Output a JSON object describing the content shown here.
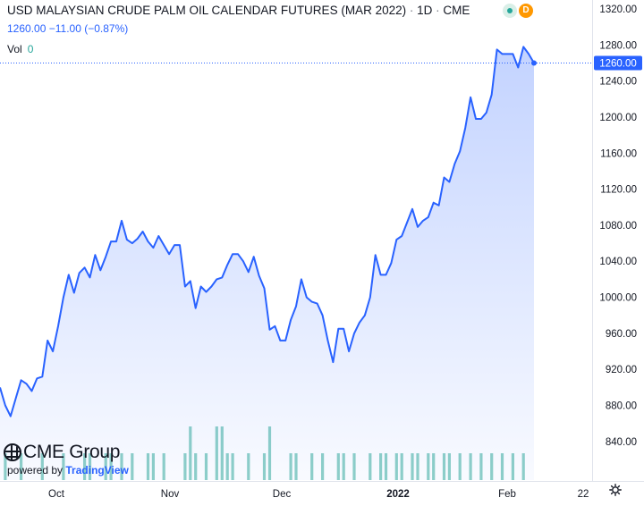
{
  "header": {
    "title": "USD MALAYSIAN CRUDE PALM OIL CALENDAR FUTURES (MAR 2022)",
    "interval": "1D",
    "exchange": "CME",
    "badge_1": "",
    "badge_2": "D"
  },
  "quote": {
    "price": "1260.00",
    "change": "−11.00",
    "change_pct": "(−0.87%)"
  },
  "volume": {
    "label": "Vol",
    "value": "0"
  },
  "logo": {
    "brand": "CME Group",
    "powered_by": "powered by",
    "provider": "TradingView"
  },
  "price_label": "1260.00",
  "colors": {
    "line": "#2962ff",
    "volume_up": "#8fd1c7",
    "volume_down": "#f7a1a1",
    "last_price_bg": "#2962ff"
  },
  "chart_data": {
    "type": "area",
    "title": "USD MALAYSIAN CRUDE PALM OIL CALENDAR FUTURES (MAR 2022)",
    "xlabel": "",
    "ylabel": "",
    "ylim": [
      818,
      1324
    ],
    "x_ticks": [
      "Oct",
      "Nov",
      "Dec",
      "2022",
      "Feb",
      "22"
    ],
    "y_ticks": [
      840,
      880,
      920,
      960,
      1000,
      1040,
      1080,
      1120,
      1160,
      1200,
      1240,
      1280,
      1320
    ],
    "last_value": 1260,
    "grid": false,
    "series": [
      {
        "values": [
          900,
          880,
          868,
          888,
          908,
          904,
          896,
          910,
          912,
          952,
          940,
          968,
          1000,
          1025,
          1005,
          1027,
          1033,
          1022,
          1047,
          1030,
          1045,
          1062,
          1062,
          1085,
          1064,
          1060,
          1065,
          1073,
          1062,
          1055,
          1068,
          1058,
          1048,
          1058,
          1058,
          1012,
          1018,
          988,
          1012,
          1006,
          1012,
          1020,
          1022,
          1036,
          1048,
          1048,
          1040,
          1028,
          1045,
          1024,
          1010,
          964,
          968,
          952,
          952,
          975,
          990,
          1020,
          1000,
          995,
          993,
          980,
          952,
          928,
          965,
          965,
          940,
          960,
          972,
          980,
          1000,
          1047,
          1025,
          1025,
          1038,
          1064,
          1068,
          1083,
          1098,
          1078,
          1085,
          1089,
          1105,
          1102,
          1133,
          1128,
          1148,
          1162,
          1188,
          1222,
          1198,
          1198,
          1205,
          1225,
          1275,
          1270,
          1270,
          1270,
          1255,
          1278,
          1270,
          1260
        ],
        "volume": [
          0,
          1,
          0,
          0,
          1,
          0,
          0,
          0,
          1,
          0,
          0,
          0,
          1,
          0,
          0,
          0,
          1,
          1,
          0,
          0,
          1,
          1,
          0,
          1,
          0,
          1,
          0,
          0,
          1,
          1,
          0,
          1,
          0,
          0,
          0,
          1,
          2,
          1,
          0,
          1,
          0,
          2,
          2,
          1,
          1,
          0,
          0,
          1,
          0,
          0,
          1,
          2,
          0,
          0,
          0,
          1,
          1,
          0,
          0,
          1,
          0,
          1,
          0,
          0,
          1,
          1,
          0,
          1,
          0,
          0,
          1,
          0,
          1,
          1,
          0,
          1,
          1,
          0,
          1,
          1,
          0,
          1,
          1,
          0,
          1,
          1,
          0,
          1,
          0,
          1,
          0,
          1,
          0,
          1,
          0,
          1,
          0,
          1,
          0,
          1,
          0,
          0
        ]
      }
    ]
  }
}
